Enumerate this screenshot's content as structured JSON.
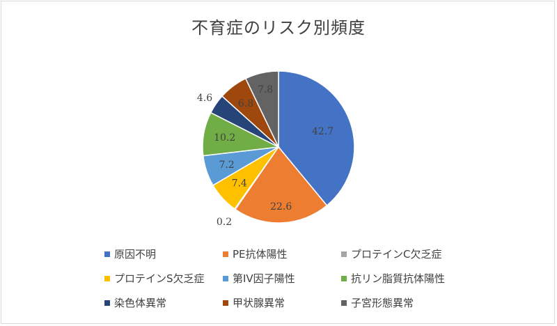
{
  "chart_data": {
    "type": "pie",
    "title": "不育症のリスク別頻度",
    "categories": [
      "原因不明",
      "PE抗体陽性",
      "プロテインC欠乏症",
      "プロテインS欠乏症",
      "第IV因子陽性",
      "抗リン脂質抗体陽性",
      "染色体異常",
      "甲状腺異常",
      "子宮形態異常"
    ],
    "values": [
      42.7,
      22.6,
      0.2,
      7.4,
      7.2,
      10.2,
      4.6,
      6.8,
      7.8
    ],
    "colors": [
      "#4472c4",
      "#ed7d31",
      "#a5a5a5",
      "#ffc000",
      "#5b9bd5",
      "#70ad47",
      "#264478",
      "#9e480e",
      "#636363"
    ],
    "legend_position": "bottom"
  }
}
